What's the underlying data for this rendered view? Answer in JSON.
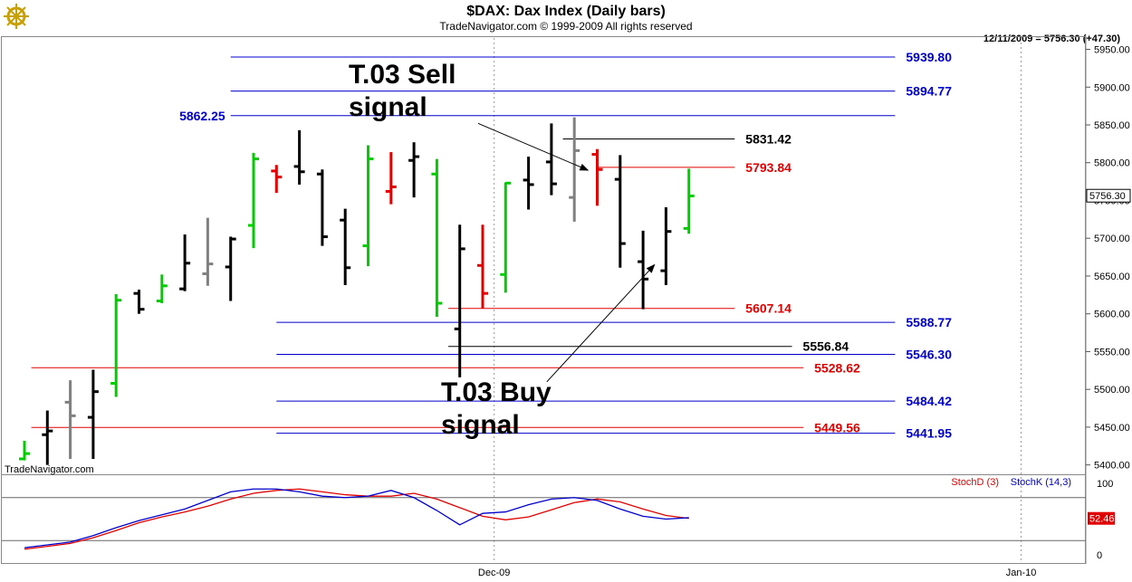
{
  "header": {
    "title": "$DAX:  Dax Index  (Daily bars)",
    "copyright": "TradeNavigator.com © 1999-2009 All rights reserved",
    "last_quote": "12/11/2009 = 5756.30 (+47.30)",
    "watermark": "TradeNavigator.com",
    "logo_icon": "gold-ship-wheel-icon"
  },
  "chart_data": [
    {
      "type": "ohlc",
      "ylim": [
        5390,
        5965
      ],
      "y_ticks": [
        "5950.00",
        "5900.00",
        "5850.00",
        "5800.00",
        "5750.00",
        "5700.00",
        "5650.00",
        "5600.00",
        "5550.00",
        "5500.00",
        "5450.00",
        "5400.00"
      ],
      "y_tick_values": [
        5950,
        5900,
        5850,
        5800,
        5750,
        5700,
        5650,
        5600,
        5550,
        5500,
        5450,
        5400
      ],
      "x_labels": [
        {
          "label": "Dec-09",
          "index": 20.5
        },
        {
          "label": "Jan-10",
          "index": 43.5
        }
      ],
      "last_price_label": "5756.30",
      "last_price": 5756.3,
      "colors": {
        "black": "#000000",
        "green": "#00cc00",
        "red": "#e00000",
        "gray": "#808080",
        "blue": "#0000cc"
      },
      "bars": [
        {
          "h": 5432,
          "l": 5406,
          "o": 5408,
          "c": 5415,
          "color": "green"
        },
        {
          "h": 5472,
          "l": 5400,
          "o": 5440,
          "c": 5445,
          "color": "black"
        },
        {
          "h": 5512,
          "l": 5408,
          "o": 5483,
          "c": 5465,
          "color": "gray"
        },
        {
          "h": 5526,
          "l": 5408,
          "o": 5463,
          "c": 5497,
          "color": "black"
        },
        {
          "h": 5626,
          "l": 5490,
          "o": 5508,
          "c": 5618,
          "color": "green"
        },
        {
          "h": 5632,
          "l": 5600,
          "o": 5627,
          "c": 5606,
          "color": "black"
        },
        {
          "h": 5652,
          "l": 5614,
          "o": 5617,
          "c": 5637,
          "color": "green"
        },
        {
          "h": 5705,
          "l": 5630,
          "o": 5633,
          "c": 5667,
          "color": "black"
        },
        {
          "h": 5727,
          "l": 5637,
          "o": 5653,
          "c": 5666,
          "color": "gray"
        },
        {
          "h": 5702,
          "l": 5617,
          "o": 5662,
          "c": 5699,
          "color": "black"
        },
        {
          "h": 5813,
          "l": 5687,
          "o": 5717,
          "c": 5805,
          "color": "green"
        },
        {
          "h": 5797,
          "l": 5760,
          "o": 5789,
          "c": 5781,
          "color": "red"
        },
        {
          "h": 5843,
          "l": 5771,
          "o": 5795,
          "c": 5788,
          "color": "black"
        },
        {
          "h": 5791,
          "l": 5690,
          "o": 5785,
          "c": 5702,
          "color": "black"
        },
        {
          "h": 5739,
          "l": 5638,
          "o": 5724,
          "c": 5661,
          "color": "black"
        },
        {
          "h": 5823,
          "l": 5663,
          "o": 5690,
          "c": 5805,
          "color": "green"
        },
        {
          "h": 5814,
          "l": 5745,
          "o": 5762,
          "c": 5768,
          "color": "red"
        },
        {
          "h": 5827,
          "l": 5754,
          "o": 5803,
          "c": 5808,
          "color": "black"
        },
        {
          "h": 5805,
          "l": 5596,
          "o": 5785,
          "c": 5614,
          "color": "green"
        },
        {
          "h": 5718,
          "l": 5516,
          "o": 5580,
          "c": 5686,
          "color": "black"
        },
        {
          "h": 5718,
          "l": 5607,
          "o": 5664,
          "c": 5627,
          "color": "red"
        },
        {
          "h": 5774,
          "l": 5628,
          "o": 5652,
          "c": 5773,
          "color": "green"
        },
        {
          "h": 5808,
          "l": 5738,
          "o": 5777,
          "c": 5771,
          "color": "black"
        },
        {
          "h": 5852,
          "l": 5757,
          "o": 5801,
          "c": 5772,
          "color": "black"
        },
        {
          "h": 5860,
          "l": 5722,
          "o": 5754,
          "c": 5816,
          "color": "gray"
        },
        {
          "h": 5818,
          "l": 5743,
          "o": 5811,
          "c": 5791,
          "color": "red"
        },
        {
          "h": 5810,
          "l": 5661,
          "o": 5778,
          "c": 5693,
          "color": "black"
        },
        {
          "h": 5710,
          "l": 5606,
          "o": 5669,
          "c": 5646,
          "color": "black"
        },
        {
          "h": 5741,
          "l": 5638,
          "o": 5657,
          "c": 5709,
          "color": "black"
        },
        {
          "h": 5792,
          "l": 5706,
          "o": 5713,
          "c": 5756,
          "color": "green"
        }
      ],
      "levels": [
        {
          "label": "5939.80",
          "value": 5939.8,
          "color": "blue",
          "from": 9,
          "to": 38,
          "label_side": "right"
        },
        {
          "label": "5894.77",
          "value": 5894.77,
          "color": "blue",
          "from": 9,
          "to": 38,
          "label_side": "right"
        },
        {
          "label": "5862.25",
          "value": 5862.25,
          "color": "blue",
          "from": 9,
          "to": 38,
          "label_side": "left"
        },
        {
          "label": "5831.42",
          "value": 5831.42,
          "color": "black",
          "from": 23.5,
          "to": 31,
          "label_side": "right"
        },
        {
          "label": "5793.84",
          "value": 5793.84,
          "color": "red",
          "from": 25,
          "to": 31,
          "label_side": "right"
        },
        {
          "label": "5607.14",
          "value": 5607.14,
          "color": "red",
          "from": 18.5,
          "to": 31,
          "label_side": "right"
        },
        {
          "label": "5588.77",
          "value": 5588.77,
          "color": "blue",
          "from": 11,
          "to": 38,
          "label_side": "right"
        },
        {
          "label": "5556.84",
          "value": 5556.84,
          "color": "black",
          "from": 18.5,
          "to": 33.5,
          "label_side": "right"
        },
        {
          "label": "5546.30",
          "value": 5546.3,
          "color": "blue",
          "from": 11,
          "to": 38,
          "label_side": "right"
        },
        {
          "label": "5528.62",
          "value": 5528.62,
          "color": "red",
          "from": 0.3,
          "to": 34,
          "label_side": "right"
        },
        {
          "label": "5484.42",
          "value": 5484.42,
          "color": "blue",
          "from": 11,
          "to": 38,
          "label_side": "right"
        },
        {
          "label": "5449.56",
          "value": 5449.56,
          "color": "red",
          "from": 0.3,
          "to": 34,
          "label_side": "right"
        },
        {
          "label": "5441.95",
          "value": 5441.95,
          "color": "blue",
          "from": 11,
          "to": 38,
          "label_side": "right"
        }
      ],
      "annotations": [
        {
          "line1": "T.03 Sell",
          "line2": "signal",
          "arrow_from": [
            19.8,
            5852
          ],
          "arrow_to": [
            24.6,
            5790
          ]
        },
        {
          "line1": "T.03 Buy",
          "line2": "signal",
          "arrow_from": [
            22.8,
            5510
          ],
          "arrow_to": [
            27.5,
            5665
          ]
        }
      ]
    },
    {
      "type": "line",
      "ylim": [
        -10,
        110
      ],
      "y_ticks": [
        "100",
        "50",
        "0"
      ],
      "y_tick_values": [
        100,
        50,
        0
      ],
      "reference_lines": [
        80,
        20
      ],
      "legend": [
        "StochD (3)",
        "StochK (14,3)"
      ],
      "last_value_label": "52.46",
      "series": [
        {
          "name": "StochD (3)",
          "color": "red",
          "values": [
            8,
            12,
            16,
            24,
            34,
            45,
            53,
            60,
            68,
            78,
            86,
            90,
            92,
            88,
            84,
            82,
            82,
            86,
            78,
            66,
            54,
            49,
            53,
            63,
            73,
            78,
            74,
            64,
            55,
            51
          ]
        },
        {
          "name": "StochK (14,3)",
          "color": "blue",
          "values": [
            10,
            14,
            18,
            27,
            38,
            48,
            56,
            64,
            76,
            88,
            92,
            92,
            88,
            82,
            80,
            82,
            90,
            80,
            62,
            42,
            58,
            60,
            70,
            78,
            80,
            76,
            64,
            54,
            50,
            52
          ]
        }
      ]
    }
  ]
}
